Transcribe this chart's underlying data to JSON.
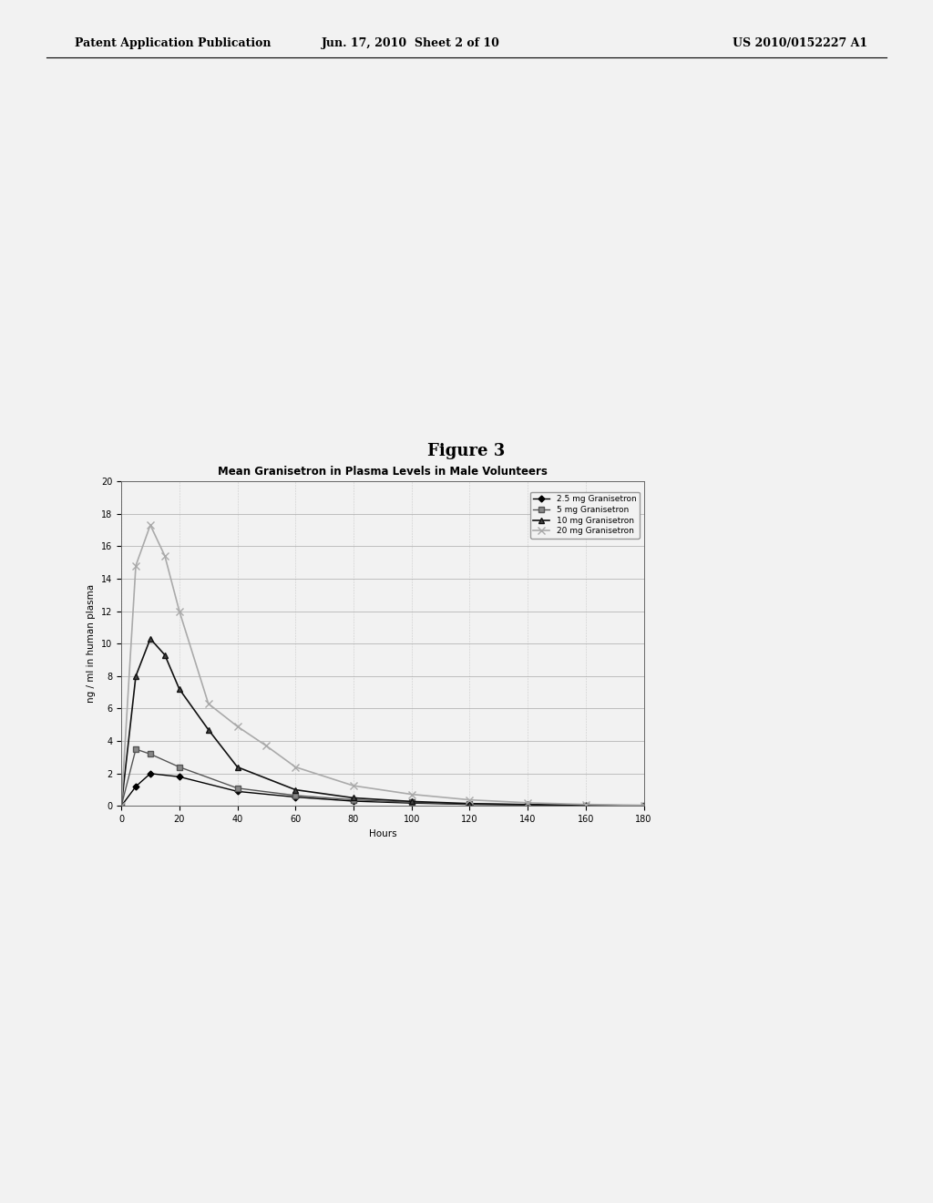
{
  "header_left": "Patent Application Publication",
  "header_center": "Jun. 17, 2010  Sheet 2 of 10",
  "header_right": "US 2010/0152227 A1",
  "figure_label": "Figure 3",
  "chart_title": "Mean Granisetron in Plasma Levels in Male Volunteers",
  "xlabel": "Hours",
  "ylabel": "ng / ml in human plasma",
  "xlim": [
    0,
    180
  ],
  "ylim": [
    0,
    20
  ],
  "xticks": [
    0,
    20,
    40,
    60,
    80,
    100,
    120,
    140,
    160,
    180
  ],
  "yticks": [
    0,
    2,
    4,
    6,
    8,
    10,
    12,
    14,
    16,
    18,
    20
  ],
  "series": [
    {
      "label": "2.5 mg Granisetron",
      "color": "#000000",
      "marker": "D",
      "markersize": 3.5,
      "markerfacecolor": "#000000",
      "linewidth": 1.0,
      "linestyle": "-",
      "x": [
        0,
        5,
        10,
        20,
        40,
        60,
        80,
        100,
        120,
        140,
        160,
        180
      ],
      "y": [
        0,
        1.2,
        2.0,
        1.8,
        0.9,
        0.55,
        0.3,
        0.18,
        0.1,
        0.07,
        0.04,
        0.02
      ]
    },
    {
      "label": "5 mg Granisetron",
      "color": "#555555",
      "marker": "s",
      "markersize": 4,
      "markerfacecolor": "#888888",
      "linewidth": 1.0,
      "linestyle": "-",
      "x": [
        0,
        5,
        10,
        20,
        40,
        60,
        80,
        100,
        120,
        140,
        160,
        180
      ],
      "y": [
        0,
        3.5,
        3.2,
        2.4,
        1.1,
        0.65,
        0.38,
        0.22,
        0.13,
        0.08,
        0.05,
        0.02
      ]
    },
    {
      "label": "10 mg Granisetron",
      "color": "#111111",
      "marker": "^",
      "markersize": 5,
      "markerfacecolor": "#444444",
      "linewidth": 1.2,
      "linestyle": "-",
      "x": [
        0,
        5,
        10,
        15,
        20,
        30,
        40,
        60,
        80,
        100,
        120,
        140,
        160,
        180
      ],
      "y": [
        0,
        8.0,
        10.3,
        9.3,
        7.2,
        4.7,
        2.4,
        1.0,
        0.5,
        0.28,
        0.15,
        0.09,
        0.05,
        0.02
      ]
    },
    {
      "label": "20 mg Granisetron",
      "color": "#aaaaaa",
      "marker": "x",
      "markersize": 6,
      "markerfacecolor": "#aaaaaa",
      "linewidth": 1.2,
      "linestyle": "-",
      "x": [
        0,
        5,
        10,
        15,
        20,
        30,
        40,
        50,
        60,
        80,
        100,
        120,
        140,
        160,
        180
      ],
      "y": [
        0,
        14.8,
        17.3,
        15.4,
        12.0,
        6.3,
        4.9,
        3.7,
        2.4,
        1.25,
        0.72,
        0.38,
        0.2,
        0.1,
        0.05
      ]
    }
  ],
  "grid_color": "#aaaaaa",
  "grid_linestyle": "--",
  "grid_linewidth": 0.5,
  "background_color": "#f0f0f0",
  "page_color": "#f0f0f0",
  "header_fontsize": 9,
  "figure_label_fontsize": 13,
  "title_fontsize": 8.5,
  "legend_fontsize": 6.5,
  "axis_fontsize": 7.5,
  "tick_fontsize": 7
}
